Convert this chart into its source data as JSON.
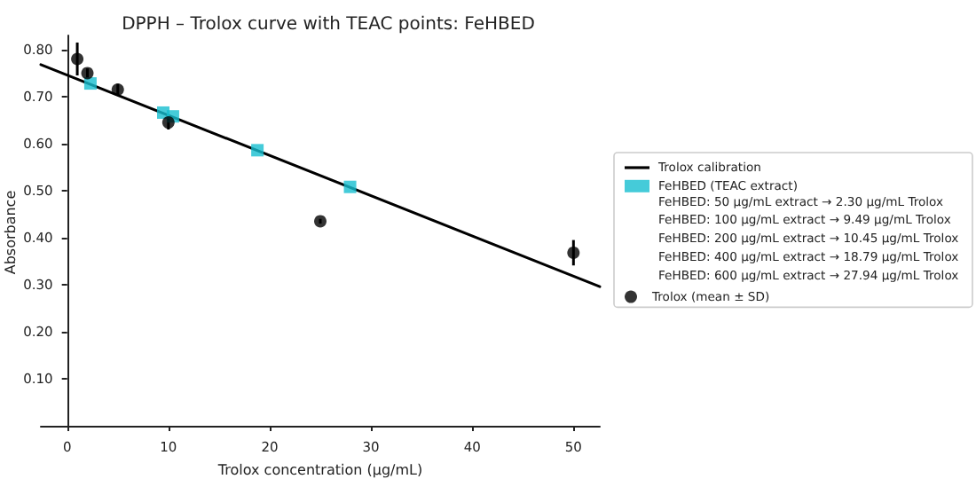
{
  "chart_data": {
    "type": "scatter",
    "title": "DPPH – Trolox curve with TEAC points: FeHBED",
    "xlabel": "Trolox concentration (μg/mL)",
    "ylabel": "Absorbance",
    "xlim": [
      -2.6,
      52.6
    ],
    "xticks": [
      0,
      10,
      20,
      30,
      40,
      50
    ],
    "ylim": [
      0,
      0.83
    ],
    "yticks": [
      {
        "value": 0.1,
        "label": "0.10"
      },
      {
        "value": 0.2,
        "label": "0.20"
      },
      {
        "value": 0.3,
        "label": "0.30"
      },
      {
        "value": 0.4,
        "label": "0.40"
      },
      {
        "value": 0.5,
        "label": "0.50"
      },
      {
        "value": 0.6,
        "label": "0.60"
      },
      {
        "value": 0.7,
        "label": "0.70"
      },
      {
        "value": 0.8,
        "label": "0.80"
      }
    ],
    "grid": false,
    "legend": "right",
    "series": [
      {
        "name": "Trolox calibration",
        "type": "line",
        "color": "#000000",
        "marker": "none",
        "line_style": "solid",
        "x": [
          -2.6,
          52.6
        ],
        "values": [
          0.768,
          0.296
        ]
      },
      {
        "name": "FeHBED (TEAC extract)",
        "type": "scatter",
        "color": "#17becf",
        "marker": "square",
        "x": [
          2.3,
          9.49,
          10.45,
          18.79,
          27.94
        ],
        "values": [
          0.728,
          0.666,
          0.658,
          0.586,
          0.508
        ]
      },
      {
        "name": "Trolox (mean ± SD)",
        "type": "scatter",
        "color": "#000000",
        "marker": "circle",
        "x": [
          1,
          2,
          5,
          10,
          25,
          50
        ],
        "values": [
          0.78,
          0.75,
          0.715,
          0.645,
          0.435,
          0.368
        ],
        "errors": [
          0.035,
          0.01,
          0.012,
          0.015,
          0.005,
          0.027
        ]
      }
    ],
    "annotations": [
      "FeHBED: 50 μg/mL extract → 2.30 μg/mL Trolox",
      "FeHBED: 100 μg/mL extract → 9.49 μg/mL Trolox",
      "FeHBED: 200 μg/mL extract → 10.45 μg/mL Trolox",
      "FeHBED: 400 μg/mL extract → 18.79 μg/mL Trolox",
      "FeHBED: 600 μg/mL extract → 27.94 μg/mL Trolox"
    ]
  }
}
